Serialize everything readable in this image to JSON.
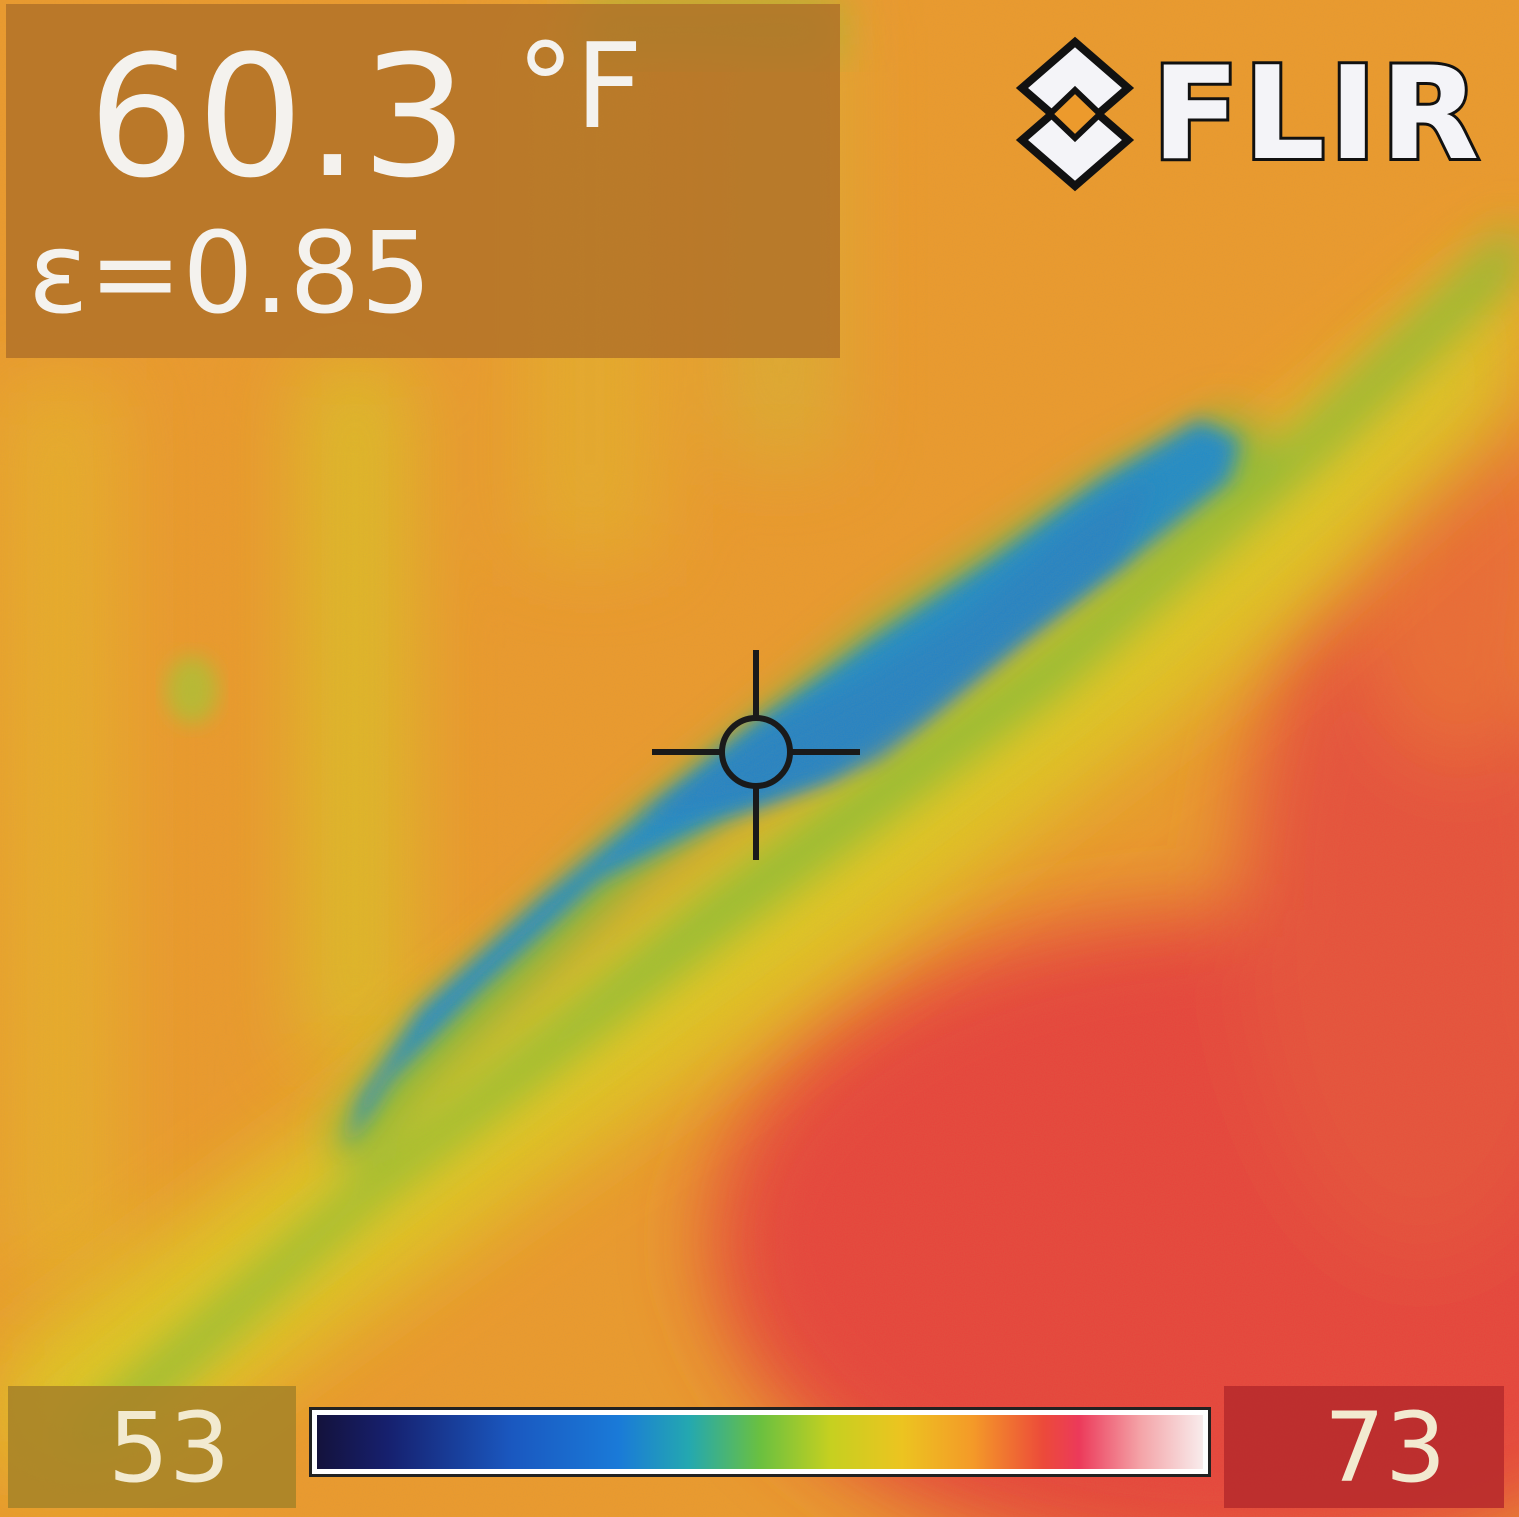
{
  "camera": {
    "brand": "FLIR",
    "logo": "flir-diamond-logo"
  },
  "readout": {
    "temperature": "60.3",
    "unit": "°F",
    "emissivity": "ε=0.85"
  },
  "scale": {
    "min": "53",
    "max": "73",
    "fill_fraction_spot": 0.37
  },
  "colors": {
    "cold": "#1a7ad8",
    "cool": "#6ac040",
    "mid": "#ecc420",
    "warm": "#f49a28",
    "hot": "#ec3a3a",
    "text": "#f4f2ee"
  },
  "icons": {
    "spot_marker": "crosshair-icon"
  }
}
